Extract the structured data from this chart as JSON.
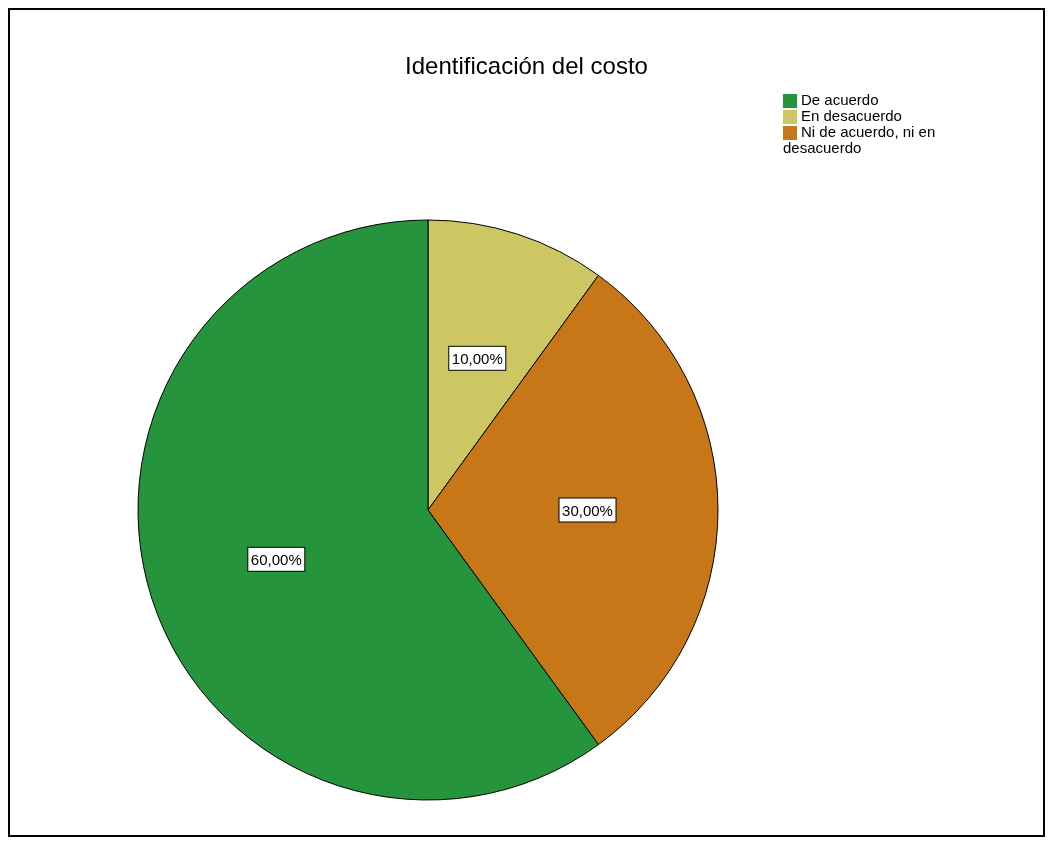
{
  "chart_data": {
    "type": "pie",
    "title": "Identificación del costo",
    "categories": [
      "En desacuerdo",
      "Ni de acuerdo, ni en desacuerdo",
      "De acuerdo"
    ],
    "values": [
      10,
      30,
      60
    ],
    "colors": [
      "#cdc763",
      "#c77718",
      "#26943c"
    ],
    "value_labels": [
      "10,00%",
      "30,00%",
      "60,00%"
    ],
    "legend": "top right"
  }
}
